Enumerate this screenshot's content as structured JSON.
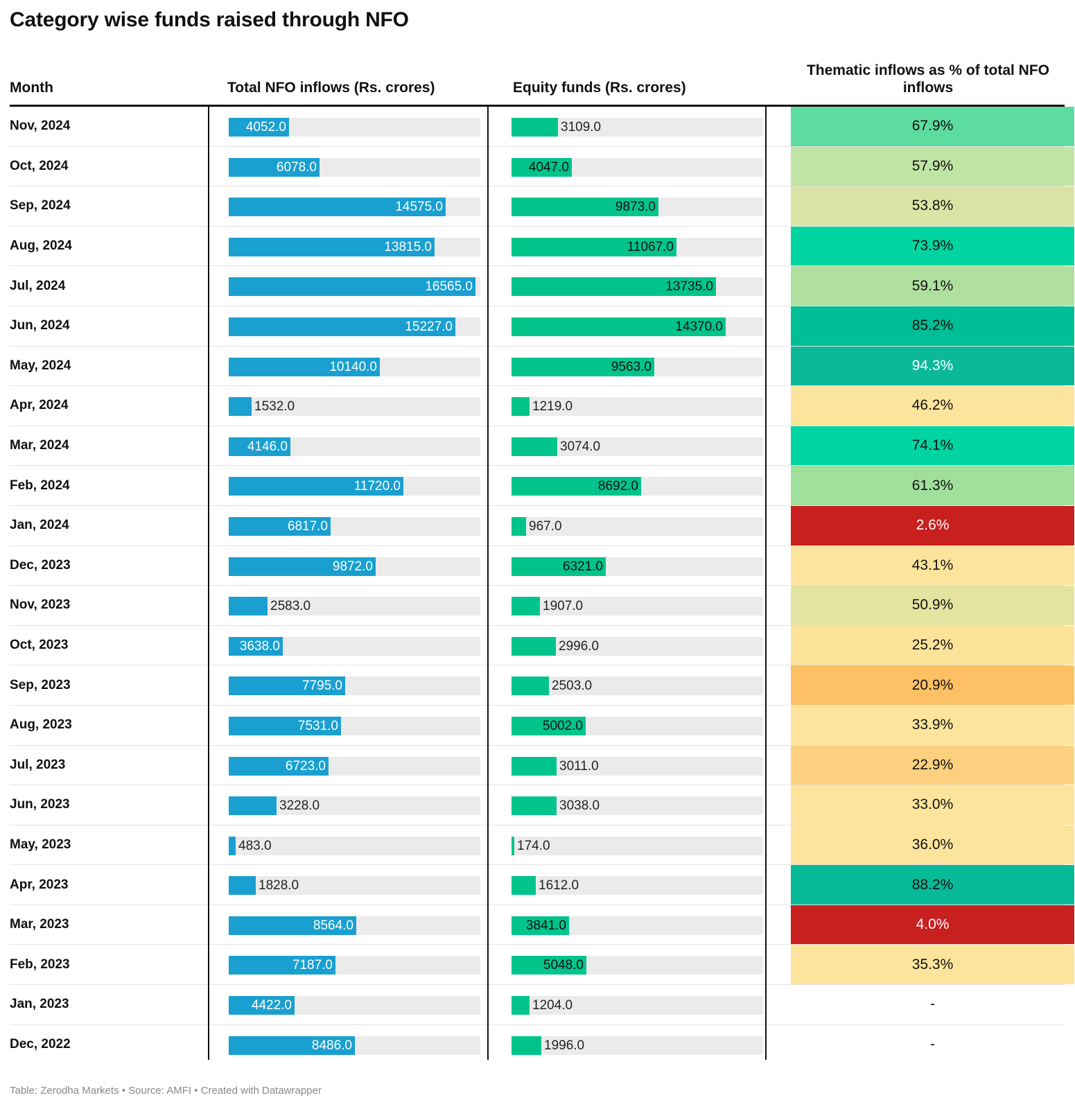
{
  "title": "Category wise funds raised through NFO",
  "columns": {
    "month": "Month",
    "total": "Total NFO inflows (Rs. crores)",
    "equity": "Equity funds (Rs. crores)",
    "thematic": "Thematic inflows as % of total NFO inflows"
  },
  "footer": "Table: Zerodha Markets • Source: AMFI • Created with Datawrapper",
  "colors": {
    "total_bar": "#1aa0d0",
    "equity_bar": "#00c48c",
    "bar_track": "#ebebeb"
  },
  "chart_data": {
    "type": "table",
    "bar_max": 16565,
    "columns": [
      "Month",
      "Total NFO inflows (Rs. crores)",
      "Equity funds (Rs. crores)",
      "Thematic inflows as % of total NFO inflows"
    ],
    "rows": [
      {
        "month": "Nov, 2024",
        "total": 4052.0,
        "total_label": "4052.0",
        "equity": 3109.0,
        "equity_label": "3109.0",
        "thematic": "67.9%",
        "heat_color": "#5ddca0"
      },
      {
        "month": "Oct, 2024",
        "total": 6078.0,
        "total_label": "6078.0",
        "equity": 4047.0,
        "equity_label": "4047.0",
        "thematic": "57.9%",
        "heat_color": "#c0e4a4"
      },
      {
        "month": "Sep, 2024",
        "total": 14575.0,
        "total_label": "14575.0",
        "equity": 9873.0,
        "equity_label": "9873.0",
        "thematic": "53.8%",
        "heat_color": "#dbe3a4"
      },
      {
        "month": "Aug, 2024",
        "total": 13815.0,
        "total_label": "13815.0",
        "equity": 11067.0,
        "equity_label": "11067.0",
        "thematic": "73.9%",
        "heat_color": "#00d4a0"
      },
      {
        "month": "Jul, 2024",
        "total": 16565.0,
        "total_label": "16565.0",
        "equity": 13735.0,
        "equity_label": "13735.0",
        "thematic": "59.1%",
        "heat_color": "#b0e0a0"
      },
      {
        "month": "Jun, 2024",
        "total": 15227.0,
        "total_label": "15227.0",
        "equity": 14370.0,
        "equity_label": "14370.0",
        "thematic": "85.2%",
        "heat_color": "#00be96"
      },
      {
        "month": "May, 2024",
        "total": 10140.0,
        "total_label": "10140.0",
        "equity": 9563.0,
        "equity_label": "9563.0",
        "thematic": "94.3%",
        "heat_color": "#0cb89a"
      },
      {
        "month": "Apr, 2024",
        "total": 1532.0,
        "total_label": "1532.0",
        "equity": 1219.0,
        "equity_label": "1219.0",
        "thematic": "46.2%",
        "heat_color": "#fde49c"
      },
      {
        "month": "Mar, 2024",
        "total": 4146.0,
        "total_label": "4146.0",
        "equity": 3074.0,
        "equity_label": "3074.0",
        "thematic": "74.1%",
        "heat_color": "#00d4a0"
      },
      {
        "month": "Feb, 2024",
        "total": 11720.0,
        "total_label": "11720.0",
        "equity": 8692.0,
        "equity_label": "8692.0",
        "thematic": "61.3%",
        "heat_color": "#a0e09c"
      },
      {
        "month": "Jan, 2024",
        "total": 6817.0,
        "total_label": "6817.0",
        "equity": 967.0,
        "equity_label": "967.0",
        "thematic": "2.6%",
        "heat_color": "#c81f1f"
      },
      {
        "month": "Dec, 2023",
        "total": 9872.0,
        "total_label": "9872.0",
        "equity": 6321.0,
        "equity_label": "6321.0",
        "thematic": "43.1%",
        "heat_color": "#fde49c"
      },
      {
        "month": "Nov, 2023",
        "total": 2583.0,
        "total_label": "2583.0",
        "equity": 1907.0,
        "equity_label": "1907.0",
        "thematic": "50.9%",
        "heat_color": "#e4e3a0"
      },
      {
        "month": "Oct, 2023",
        "total": 3638.0,
        "total_label": "3638.0",
        "equity": 2996.0,
        "equity_label": "2996.0",
        "thematic": "25.2%",
        "heat_color": "#fde29a"
      },
      {
        "month": "Sep, 2023",
        "total": 7795.0,
        "total_label": "7795.0",
        "equity": 2503.0,
        "equity_label": "2503.0",
        "thematic": "20.9%",
        "heat_color": "#fdc064"
      },
      {
        "month": "Aug, 2023",
        "total": 7531.0,
        "total_label": "7531.0",
        "equity": 5002.0,
        "equity_label": "5002.0",
        "thematic": "33.9%",
        "heat_color": "#fde49c"
      },
      {
        "month": "Jul, 2023",
        "total": 6723.0,
        "total_label": "6723.0",
        "equity": 3011.0,
        "equity_label": "3011.0",
        "thematic": "22.9%",
        "heat_color": "#fdd080"
      },
      {
        "month": "Jun, 2023",
        "total": 3228.0,
        "total_label": "3228.0",
        "equity": 3038.0,
        "equity_label": "3038.0",
        "thematic": "33.0%",
        "heat_color": "#fde49c"
      },
      {
        "month": "May, 2023",
        "total": 483.0,
        "total_label": "483.0",
        "equity": 174.0,
        "equity_label": "174.0",
        "thematic": "36.0%",
        "heat_color": "#fde49c"
      },
      {
        "month": "Apr, 2023",
        "total": 1828.0,
        "total_label": "1828.0",
        "equity": 1612.0,
        "equity_label": "1612.0",
        "thematic": "88.2%",
        "heat_color": "#08ba98"
      },
      {
        "month": "Mar, 2023",
        "total": 8564.0,
        "total_label": "8564.0",
        "equity": 3841.0,
        "equity_label": "3841.0",
        "thematic": "4.0%",
        "heat_color": "#c81f1f"
      },
      {
        "month": "Feb, 2023",
        "total": 7187.0,
        "total_label": "7187.0",
        "equity": 5048.0,
        "equity_label": "5048.0",
        "thematic": "35.3%",
        "heat_color": "#fde49c"
      },
      {
        "month": "Jan, 2023",
        "total": 4422.0,
        "total_label": "4422.0",
        "equity": 1204.0,
        "equity_label": "1204.0",
        "thematic": "-",
        "heat_color": "#ffffff"
      },
      {
        "month": "Dec, 2022",
        "total": 8486.0,
        "total_label": "8486.0",
        "equity": 1996.0,
        "equity_label": "1996.0",
        "thematic": "-",
        "heat_color": "#ffffff"
      }
    ]
  }
}
